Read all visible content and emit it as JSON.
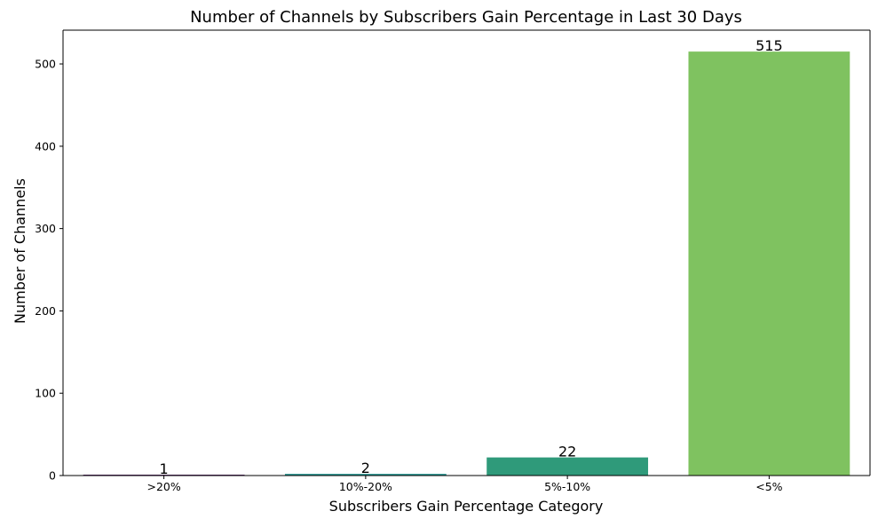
{
  "chart_data": {
    "type": "bar",
    "title": "Number of Channels by Subscribers Gain Percentage in Last 30 Days",
    "xlabel": "Subscribers Gain Percentage Category",
    "ylabel": "Number of Channels",
    "categories": [
      ">20%",
      "10%-20%",
      "5%-10%",
      "<5%"
    ],
    "values": [
      1,
      2,
      22,
      515
    ],
    "data_labels": [
      "1",
      "2",
      "22",
      "515"
    ],
    "colors": [
      "#440154",
      "#21918c",
      "#2f9a7a",
      "#7fc260"
    ],
    "ylim": [
      0,
      541
    ],
    "yticks": [
      0,
      100,
      200,
      300,
      400,
      500
    ],
    "grid": false,
    "legend": "none"
  }
}
